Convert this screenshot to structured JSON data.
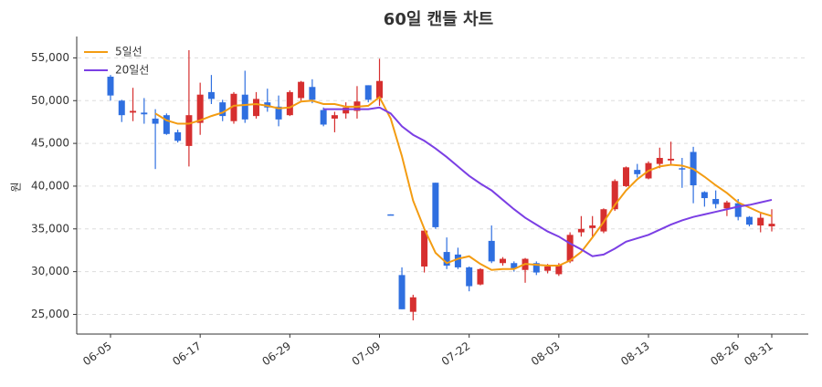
{
  "chart_data": {
    "type": "candlestick",
    "title": "60일 캔들 차트",
    "y_label": "원",
    "categories": [
      "06-05",
      null,
      null,
      null,
      null,
      null,
      null,
      null,
      "06-17",
      null,
      null,
      null,
      null,
      null,
      null,
      null,
      "06-29",
      null,
      null,
      null,
      null,
      null,
      null,
      null,
      "07-09",
      null,
      null,
      null,
      null,
      null,
      null,
      null,
      "07-22",
      null,
      null,
      null,
      null,
      null,
      null,
      null,
      "08-03",
      null,
      null,
      null,
      null,
      null,
      null,
      null,
      "08-13",
      null,
      null,
      null,
      null,
      null,
      null,
      null,
      "08-26",
      null,
      null,
      "08-31"
    ],
    "open": [
      52800,
      50000,
      48600,
      48600,
      47900,
      48300,
      46300,
      44700,
      47400,
      51000,
      49800,
      47600,
      50700,
      48200,
      49800,
      49300,
      48300,
      50300,
      51600,
      48900,
      47900,
      48500,
      48800,
      51800,
      50300,
      36700,
      29600,
      25300,
      30600,
      40400,
      32300,
      32000,
      30500,
      28500,
      33600,
      31000,
      31000,
      30200,
      31000,
      30100,
      29700,
      31200,
      34600,
      35100,
      34700,
      37300,
      40000,
      41900,
      40900,
      42600,
      43000,
      42100,
      44000,
      39300,
      38500,
      37400,
      38000,
      36400,
      35400,
      35300
    ],
    "high": [
      53000,
      50100,
      51500,
      50300,
      49000,
      48500,
      46600,
      55900,
      52100,
      53000,
      50100,
      51000,
      53500,
      51000,
      51400,
      50600,
      51200,
      52300,
      52500,
      49200,
      48700,
      49800,
      51700,
      51800,
      54900,
      36700,
      30500,
      27300,
      34800,
      40400,
      34000,
      32800,
      30600,
      30400,
      35400,
      31700,
      31200,
      31600,
      31200,
      30900,
      31000,
      34600,
      36500,
      36500,
      37400,
      40800,
      42300,
      42600,
      42900,
      44500,
      45200,
      43300,
      44600,
      39400,
      39500,
      38300,
      38500,
      36500,
      36800,
      37300
    ],
    "low": [
      50000,
      47500,
      47600,
      47300,
      42000,
      46000,
      45100,
      42300,
      46000,
      49600,
      47600,
      47300,
      47400,
      47900,
      48700,
      47000,
      48200,
      50000,
      49700,
      47000,
      46300,
      47900,
      47900,
      49800,
      49400,
      36600,
      25600,
      24300,
      29900,
      35000,
      30300,
      30300,
      27700,
      28400,
      31000,
      30700,
      30000,
      28700,
      29600,
      29800,
      29500,
      31000,
      34100,
      34100,
      34500,
      37100,
      39900,
      41000,
      40800,
      42100,
      42400,
      39800,
      38000,
      37600,
      37400,
      36500,
      36000,
      35300,
      34600,
      34700
    ],
    "close": [
      50600,
      48300,
      48800,
      48400,
      47300,
      46100,
      45300,
      48300,
      50700,
      50200,
      48200,
      50800,
      47800,
      50200,
      49200,
      47800,
      51000,
      52200,
      50100,
      47200,
      48300,
      49200,
      49900,
      50100,
      52300,
      36600,
      25600,
      27000,
      34800,
      35200,
      30700,
      30500,
      28300,
      30300,
      31200,
      31500,
      30400,
      31500,
      29900,
      30600,
      30800,
      34300,
      35000,
      35400,
      37300,
      40600,
      42200,
      41400,
      42700,
      43300,
      43200,
      42000,
      40100,
      38600,
      37900,
      38100,
      36400,
      35500,
      36300,
      35600
    ],
    "up_color": "#d62f2f",
    "down_color": "#2f6fe0",
    "series": [
      {
        "name": "5일선",
        "color": "#f39c12",
        "values": [
          null,
          null,
          null,
          null,
          48500,
          47700,
          47300,
          47300,
          47700,
          48200,
          48600,
          49400,
          49500,
          49600,
          49400,
          49100,
          49200,
          49900,
          50000,
          49600,
          49600,
          49300,
          49300,
          49400,
          50400,
          47900,
          43500,
          38300,
          35000,
          32200,
          31000,
          31500,
          31800,
          30900,
          30200,
          30300,
          30300,
          30900,
          30800,
          30700,
          30700,
          31300,
          32300,
          34000,
          35800,
          37800,
          39500,
          40800,
          41800,
          42300,
          42500,
          42400,
          42000,
          41100,
          40100,
          39200,
          38100,
          37500,
          36900,
          36500
        ]
      },
      {
        "name": "20일선",
        "color": "#7b3fe4",
        "values": [
          null,
          null,
          null,
          null,
          null,
          null,
          null,
          null,
          null,
          null,
          null,
          null,
          null,
          null,
          null,
          null,
          null,
          null,
          null,
          49000,
          49000,
          49000,
          49000,
          49000,
          49200,
          48500,
          47000,
          46000,
          45300,
          44400,
          43400,
          42300,
          41200,
          40300,
          39500,
          38400,
          37300,
          36300,
          35500,
          34700,
          34100,
          33300,
          32600,
          31800,
          32000,
          32700,
          33500,
          33900,
          34300,
          34900,
          35500,
          36000,
          36400,
          36700,
          37000,
          37300,
          37600,
          37800,
          38100,
          38400
        ]
      }
    ],
    "ylim": [
      22700,
      57500
    ],
    "yticks": [
      {
        "value": 25000,
        "label": "25,000"
      },
      {
        "value": 30000,
        "label": "30,000"
      },
      {
        "value": 35000,
        "label": "35,000"
      },
      {
        "value": 40000,
        "label": "40,000"
      },
      {
        "value": 45000,
        "label": "45,000"
      },
      {
        "value": 50000,
        "label": "50,000"
      },
      {
        "value": 55000,
        "label": "55,000"
      }
    ],
    "grid": true,
    "legend": "upper left"
  }
}
